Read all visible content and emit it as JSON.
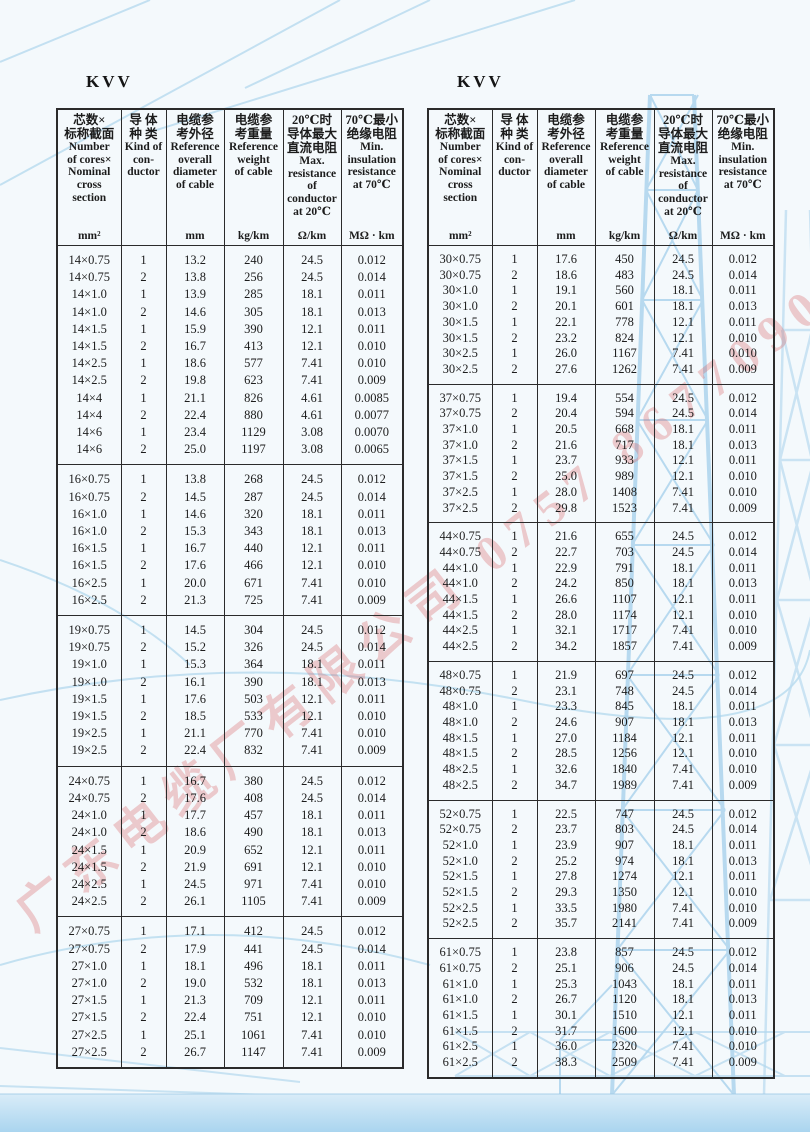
{
  "titles": {
    "left": "KVV",
    "right": "KVV"
  },
  "watermark": {
    "text": "广东电缆厂有限公司 0757 8677090",
    "color": "#d54e4e"
  },
  "header": {
    "widths": [
      64,
      45,
      58,
      59,
      58,
      62
    ],
    "columns": [
      {
        "cn": "芯数×\n标称截面",
        "en": "Number\nof cores×\nNominal\ncross\nsection",
        "unit": "mm²"
      },
      {
        "cn": "导 体\n种 类",
        "en": "Kind of\ncon-\nductor",
        "unit": ""
      },
      {
        "cn": "电缆参\n考外径",
        "en": "Reference\noverall\ndiameter\nof cable",
        "unit": "mm"
      },
      {
        "cn": "电缆参\n考重量",
        "en": "Reference\nweight\nof cable",
        "unit": "kg/km"
      },
      {
        "cn": "20℃时\n导体最大\n直流电阻",
        "en": "Max.\nresistance\nof\nconductor\nat 20℃",
        "unit": "Ω/km"
      },
      {
        "cn": "70℃最小\n绝缘电阻",
        "en": "Min.\ninsulation\nresistance\nat 70℃",
        "unit": "MΩ · km"
      }
    ]
  },
  "tables": {
    "left": {
      "groups": [
        {
          "rows": [
            [
              "14×0.75",
              "1",
              "13.2",
              "240",
              "24.5",
              "0.012"
            ],
            [
              "14×0.75",
              "2",
              "13.8",
              "256",
              "24.5",
              "0.014"
            ],
            [
              "14×1.0",
              "1",
              "13.9",
              "285",
              "18.1",
              "0.011"
            ],
            [
              "14×1.0",
              "2",
              "14.6",
              "305",
              "18.1",
              "0.013"
            ],
            [
              "14×1.5",
              "1",
              "15.9",
              "390",
              "12.1",
              "0.011"
            ],
            [
              "14×1.5",
              "2",
              "16.7",
              "413",
              "12.1",
              "0.010"
            ],
            [
              "14×2.5",
              "1",
              "18.6",
              "577",
              "7.41",
              "0.010"
            ],
            [
              "14×2.5",
              "2",
              "19.8",
              "623",
              "7.41",
              "0.009"
            ],
            [
              "14×4",
              "1",
              "21.1",
              "826",
              "4.61",
              "0.0085"
            ],
            [
              "14×4",
              "2",
              "22.4",
              "880",
              "4.61",
              "0.0077"
            ],
            [
              "14×6",
              "1",
              "23.4",
              "1129",
              "3.08",
              "0.0070"
            ],
            [
              "14×6",
              "2",
              "25.0",
              "1197",
              "3.08",
              "0.0065"
            ]
          ]
        },
        {
          "rows": [
            [
              "16×0.75",
              "1",
              "13.8",
              "268",
              "24.5",
              "0.012"
            ],
            [
              "16×0.75",
              "2",
              "14.5",
              "287",
              "24.5",
              "0.014"
            ],
            [
              "16×1.0",
              "1",
              "14.6",
              "320",
              "18.1",
              "0.011"
            ],
            [
              "16×1.0",
              "2",
              "15.3",
              "343",
              "18.1",
              "0.013"
            ],
            [
              "16×1.5",
              "1",
              "16.7",
              "440",
              "12.1",
              "0.011"
            ],
            [
              "16×1.5",
              "2",
              "17.6",
              "466",
              "12.1",
              "0.010"
            ],
            [
              "16×2.5",
              "1",
              "20.0",
              "671",
              "7.41",
              "0.010"
            ],
            [
              "16×2.5",
              "2",
              "21.3",
              "725",
              "7.41",
              "0.009"
            ]
          ]
        },
        {
          "rows": [
            [
              "19×0.75",
              "1",
              "14.5",
              "304",
              "24.5",
              "0.012"
            ],
            [
              "19×0.75",
              "2",
              "15.2",
              "326",
              "24.5",
              "0.014"
            ],
            [
              "19×1.0",
              "1",
              "15.3",
              "364",
              "18.1",
              "0.011"
            ],
            [
              "19×1.0",
              "2",
              "16.1",
              "390",
              "18.1",
              "0.013"
            ],
            [
              "19×1.5",
              "1",
              "17.6",
              "503",
              "12.1",
              "0.011"
            ],
            [
              "19×1.5",
              "2",
              "18.5",
              "533",
              "12.1",
              "0.010"
            ],
            [
              "19×2.5",
              "1",
              "21.1",
              "770",
              "7.41",
              "0.010"
            ],
            [
              "19×2.5",
              "2",
              "22.4",
              "832",
              "7.41",
              "0.009"
            ]
          ]
        },
        {
          "rows": [
            [
              "24×0.75",
              "1",
              "16.7",
              "380",
              "24.5",
              "0.012"
            ],
            [
              "24×0.75",
              "2",
              "17.6",
              "408",
              "24.5",
              "0.014"
            ],
            [
              "24×1.0",
              "1",
              "17.7",
              "457",
              "18.1",
              "0.011"
            ],
            [
              "24×1.0",
              "2",
              "18.6",
              "490",
              "18.1",
              "0.013"
            ],
            [
              "24×1.5",
              "1",
              "20.9",
              "652",
              "12.1",
              "0.011"
            ],
            [
              "24×1.5",
              "2",
              "21.9",
              "691",
              "12.1",
              "0.010"
            ],
            [
              "24×2.5",
              "1",
              "24.5",
              "971",
              "7.41",
              "0.010"
            ],
            [
              "24×2.5",
              "2",
              "26.1",
              "1105",
              "7.41",
              "0.009"
            ]
          ]
        },
        {
          "rows": [
            [
              "27×0.75",
              "1",
              "17.1",
              "412",
              "24.5",
              "0.012"
            ],
            [
              "27×0.75",
              "2",
              "17.9",
              "441",
              "24.5",
              "0.014"
            ],
            [
              "27×1.0",
              "1",
              "18.1",
              "496",
              "18.1",
              "0.011"
            ],
            [
              "27×1.0",
              "2",
              "19.0",
              "532",
              "18.1",
              "0.013"
            ],
            [
              "27×1.5",
              "1",
              "21.3",
              "709",
              "12.1",
              "0.011"
            ],
            [
              "27×1.5",
              "2",
              "22.4",
              "751",
              "12.1",
              "0.010"
            ],
            [
              "27×2.5",
              "1",
              "25.1",
              "1061",
              "7.41",
              "0.010"
            ],
            [
              "27×2.5",
              "2",
              "26.7",
              "1147",
              "7.41",
              "0.009"
            ]
          ]
        }
      ]
    },
    "right": {
      "groups": [
        {
          "rows": [
            [
              "30×0.75",
              "1",
              "17.6",
              "450",
              "24.5",
              "0.012"
            ],
            [
              "30×0.75",
              "2",
              "18.6",
              "483",
              "24.5",
              "0.014"
            ],
            [
              "30×1.0",
              "1",
              "19.1",
              "560",
              "18.1",
              "0.011"
            ],
            [
              "30×1.0",
              "2",
              "20.1",
              "601",
              "18.1",
              "0.013"
            ],
            [
              "30×1.5",
              "1",
              "22.1",
              "778",
              "12.1",
              "0.011"
            ],
            [
              "30×1.5",
              "2",
              "23.2",
              "824",
              "12.1",
              "0.010"
            ],
            [
              "30×2.5",
              "1",
              "26.0",
              "1167",
              "7.41",
              "0.010"
            ],
            [
              "30×2.5",
              "2",
              "27.6",
              "1262",
              "7.41",
              "0.009"
            ]
          ]
        },
        {
          "rows": [
            [
              "37×0.75",
              "1",
              "19.4",
              "554",
              "24.5",
              "0.012"
            ],
            [
              "37×0.75",
              "2",
              "20.4",
              "594",
              "24.5",
              "0.014"
            ],
            [
              "37×1.0",
              "1",
              "20.5",
              "668",
              "18.1",
              "0.011"
            ],
            [
              "37×1.0",
              "2",
              "21.6",
              "717",
              "18.1",
              "0.013"
            ],
            [
              "37×1.5",
              "1",
              "23.7",
              "933",
              "12.1",
              "0.011"
            ],
            [
              "37×1.5",
              "2",
              "25.0",
              "989",
              "12.1",
              "0.010"
            ],
            [
              "37×2.5",
              "1",
              "28.0",
              "1408",
              "7.41",
              "0.010"
            ],
            [
              "37×2.5",
              "2",
              "29.8",
              "1523",
              "7.41",
              "0.009"
            ]
          ]
        },
        {
          "rows": [
            [
              "44×0.75",
              "1",
              "21.6",
              "655",
              "24.5",
              "0.012"
            ],
            [
              "44×0.75",
              "2",
              "22.7",
              "703",
              "24.5",
              "0.014"
            ],
            [
              "44×1.0",
              "1",
              "22.9",
              "791",
              "18.1",
              "0.011"
            ],
            [
              "44×1.0",
              "2",
              "24.2",
              "850",
              "18.1",
              "0.013"
            ],
            [
              "44×1.5",
              "1",
              "26.6",
              "1107",
              "12.1",
              "0.011"
            ],
            [
              "44×1.5",
              "2",
              "28.0",
              "1174",
              "12.1",
              "0.010"
            ],
            [
              "44×2.5",
              "1",
              "32.1",
              "1717",
              "7.41",
              "0.010"
            ],
            [
              "44×2.5",
              "2",
              "34.2",
              "1857",
              "7.41",
              "0.009"
            ]
          ]
        },
        {
          "rows": [
            [
              "48×0.75",
              "1",
              "21.9",
              "697",
              "24.5",
              "0.012"
            ],
            [
              "48×0.75",
              "2",
              "23.1",
              "748",
              "24.5",
              "0.014"
            ],
            [
              "48×1.0",
              "1",
              "23.3",
              "845",
              "18.1",
              "0.011"
            ],
            [
              "48×1.0",
              "2",
              "24.6",
              "907",
              "18.1",
              "0.013"
            ],
            [
              "48×1.5",
              "1",
              "27.0",
              "1184",
              "12.1",
              "0.011"
            ],
            [
              "48×1.5",
              "2",
              "28.5",
              "1256",
              "12.1",
              "0.010"
            ],
            [
              "48×2.5",
              "1",
              "32.6",
              "1840",
              "7.41",
              "0.010"
            ],
            [
              "48×2.5",
              "2",
              "34.7",
              "1989",
              "7.41",
              "0.009"
            ]
          ]
        },
        {
          "rows": [
            [
              "52×0.75",
              "1",
              "22.5",
              "747",
              "24.5",
              "0.012"
            ],
            [
              "52×0.75",
              "2",
              "23.7",
              "803",
              "24.5",
              "0.014"
            ],
            [
              "52×1.0",
              "1",
              "23.9",
              "907",
              "18.1",
              "0.011"
            ],
            [
              "52×1.0",
              "2",
              "25.2",
              "974",
              "18.1",
              "0.013"
            ],
            [
              "52×1.5",
              "1",
              "27.8",
              "1274",
              "12.1",
              "0.011"
            ],
            [
              "52×1.5",
              "2",
              "29.3",
              "1350",
              "12.1",
              "0.010"
            ],
            [
              "52×2.5",
              "1",
              "33.5",
              "1980",
              "7.41",
              "0.010"
            ],
            [
              "52×2.5",
              "2",
              "35.7",
              "2141",
              "7.41",
              "0.009"
            ]
          ]
        },
        {
          "rows": [
            [
              "61×0.75",
              "1",
              "23.8",
              "857",
              "24.5",
              "0.012"
            ],
            [
              "61×0.75",
              "2",
              "25.1",
              "906",
              "24.5",
              "0.014"
            ],
            [
              "61×1.0",
              "1",
              "25.3",
              "1043",
              "18.1",
              "0.011"
            ],
            [
              "61×1.0",
              "2",
              "26.7",
              "1120",
              "18.1",
              "0.013"
            ],
            [
              "61×1.5",
              "1",
              "30.1",
              "1510",
              "12.1",
              "0.011"
            ],
            [
              "61×1.5",
              "2",
              "31.7",
              "1600",
              "12.1",
              "0.010"
            ],
            [
              "61×2.5",
              "1",
              "36.0",
              "2320",
              "7.41",
              "0.010"
            ],
            [
              "61×2.5",
              "2",
              "38.3",
              "2509",
              "7.41",
              "0.009"
            ]
          ]
        }
      ]
    }
  }
}
